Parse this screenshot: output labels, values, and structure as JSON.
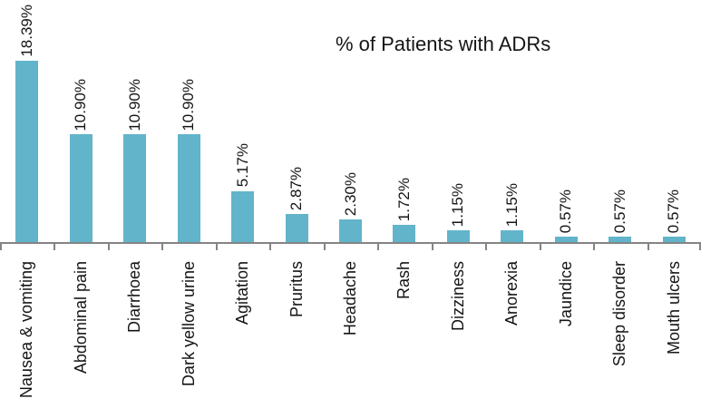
{
  "chart_data": {
    "type": "bar",
    "title": "% of Patients with ADRs",
    "categories": [
      "Nausea & vomiting",
      "Abdominal pain",
      "Diarrhoea",
      "Dark yellow urine",
      "Agitation",
      "Pruritus",
      "Headache",
      "Rash",
      "Dizziness",
      "Anorexia",
      "Jaundice",
      "Sleep disorder",
      "Mouth ulcers"
    ],
    "values": [
      18.39,
      10.9,
      10.9,
      10.9,
      5.17,
      2.87,
      2.3,
      1.72,
      1.15,
      1.15,
      0.57,
      0.57,
      0.57
    ],
    "value_labels": [
      "18.39%",
      "10.90%",
      "10.90%",
      "10.90%",
      "5.17%",
      "2.87%",
      "2.30%",
      "1.72%",
      "1.15%",
      "1.15%",
      "0.57%",
      "0.57%",
      "0.57%"
    ],
    "xlabel": "",
    "ylabel": "",
    "ylim": [
      0,
      24.5
    ],
    "grid": false,
    "legend_position": "none",
    "x_label_rotation_degrees": 90,
    "data_label_rotation_degrees": 90,
    "colors": {
      "bar_fill": "#62B4CA",
      "axis_line": "#848484",
      "text": "#151515",
      "background": "#FFFFFF"
    }
  }
}
